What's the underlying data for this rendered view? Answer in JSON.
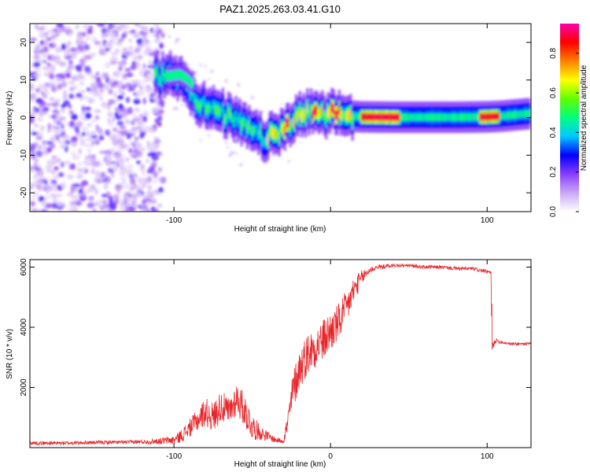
{
  "title": "PAZ1.2025.263.03.41.G10",
  "chart_data": [
    {
      "type": "heatmap",
      "name": "spectrogram",
      "xlabel": "Height of straight line (km)",
      "ylabel": "Frequency (Hz)",
      "xlim": [
        -192,
        128
      ],
      "ylim": [
        -25,
        25
      ],
      "xticks": [
        -100,
        0,
        100
      ],
      "xtick_labels": [
        "-100",
        "",
        "100"
      ],
      "yticks": [
        -20,
        -10,
        0,
        10,
        20
      ],
      "ytick_labels": [
        "-20",
        "-10",
        "0",
        "10",
        "20"
      ],
      "colorbar": {
        "label": "Normalized spectral amplitude",
        "range": [
          0.0,
          0.95
        ],
        "ticks": [
          0.0,
          0.2,
          0.4,
          0.6,
          0.8
        ],
        "tick_labels": [
          "0.0",
          "0.2",
          "0.4",
          "0.6",
          "0.8"
        ],
        "colors": [
          "#ffffff",
          "#c9a8f5",
          "#8a3cff",
          "#0000ff",
          "#00c8ff",
          "#00ff80",
          "#60ff00",
          "#ffff00",
          "#ff8000",
          "#ff0000",
          "#ff00aa"
        ]
      },
      "ridge": {
        "x": [
          -110,
          -103,
          -98,
          -94,
          -90,
          -86,
          -82,
          -78,
          -74,
          -70,
          -66,
          -62,
          -58,
          -54,
          -50,
          -46,
          -42,
          -38,
          -34,
          -30,
          -26,
          -22,
          -18,
          -14,
          -10,
          -6,
          -2,
          2,
          6,
          10,
          14,
          20,
          40,
          60,
          80,
          100,
          110,
          120,
          128
        ],
        "y": [
          11,
          11.5,
          11,
          10.5,
          7.5,
          5,
          3.5,
          2.5,
          2,
          1.5,
          0.5,
          -0.5,
          -1.5,
          -2.5,
          -3.5,
          -4.8,
          -5.5,
          -5,
          -4,
          -3,
          -1.5,
          0,
          1,
          1.2,
          1.2,
          0.8,
          1.0,
          1.3,
          0.9,
          0.6,
          0.4,
          0.2,
          0.1,
          0.1,
          0.1,
          0.2,
          0.4,
          0.8,
          1.1
        ]
      }
    },
    {
      "type": "line",
      "name": "snr",
      "xlabel": "Height of straight line (km)",
      "ylabel": "SNR (10 * v/v)",
      "xlim": [
        -192,
        128
      ],
      "ylim": [
        0,
        6250
      ],
      "xticks": [
        -100,
        0,
        100
      ],
      "xtick_labels": [
        "-100",
        "0",
        "100"
      ],
      "yticks": [
        2000,
        4000,
        6000
      ],
      "ytick_labels": [
        "2000",
        "4000",
        "6000"
      ],
      "color": "#e8262a",
      "x": [
        -192,
        -170,
        -150,
        -130,
        -115,
        -100,
        -95,
        -90,
        -85,
        -80,
        -75,
        -70,
        -65,
        -60,
        -55,
        -50,
        -45,
        -40,
        -35,
        -30,
        -27,
        -24,
        -20,
        -15,
        -10,
        -5,
        0,
        5,
        10,
        15,
        20,
        25,
        30,
        40,
        50,
        60,
        70,
        80,
        90,
        100,
        102.5,
        103,
        105,
        110,
        115,
        120,
        128
      ],
      "y": [
        150,
        150,
        170,
        180,
        200,
        250,
        400,
        650,
        900,
        1200,
        1000,
        1400,
        1150,
        1650,
        1250,
        700,
        500,
        380,
        250,
        230,
        900,
        1900,
        2600,
        3100,
        3350,
        3550,
        3850,
        4150,
        4600,
        5250,
        5650,
        5900,
        6000,
        6050,
        6050,
        6000,
        6000,
        5950,
        5950,
        5850,
        5800,
        3300,
        3550,
        3500,
        3450,
        3450,
        3450
      ],
      "noise": [
        60,
        60,
        60,
        60,
        80,
        150,
        220,
        300,
        380,
        480,
        500,
        520,
        520,
        560,
        560,
        450,
        250,
        150,
        100,
        80,
        500,
        650,
        700,
        700,
        700,
        700,
        700,
        650,
        600,
        450,
        250,
        120,
        80,
        60,
        60,
        60,
        60,
        60,
        60,
        60,
        60,
        150,
        80,
        50,
        50,
        50,
        50
      ]
    }
  ]
}
